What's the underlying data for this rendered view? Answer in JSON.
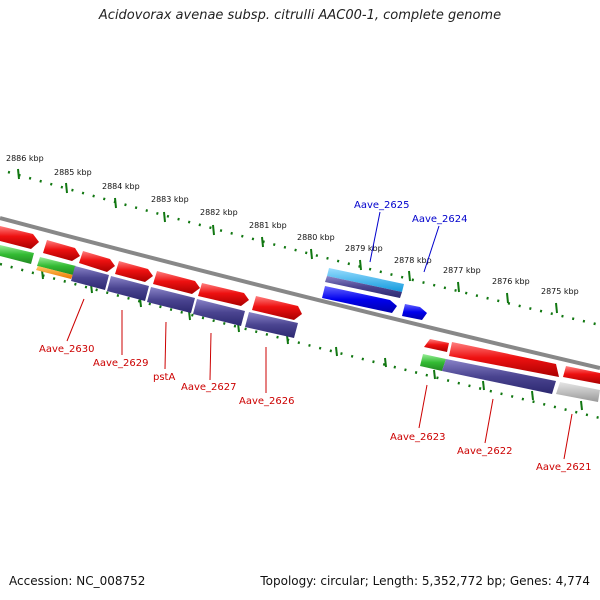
{
  "title": "Acidovorax avenae subsp. citrulli AAC00-1, complete genome",
  "accession": "Accession: NC_008752",
  "summary": "Topology: circular; Length: 5,352,772 bp; Genes: 4,774",
  "scale_labels": [
    "2886 kbp",
    "2885 kbp",
    "2884 kbp",
    "2883 kbp",
    "2882 kbp",
    "2881 kbp",
    "2880 kbp",
    "2879 kbp",
    "2878 kbp",
    "2877 kbp",
    "2876 kbp",
    "2875 kbp"
  ],
  "gene_labels_upper": [
    "Aave_2625",
    "Aave_2624"
  ],
  "gene_labels_lower": [
    "Aave_2630",
    "Aave_2629",
    "pstA",
    "Aave_2627",
    "Aave_2626",
    "Aave_2623",
    "Aave_2622",
    "Aave_2621"
  ],
  "colors": {
    "cds": "#ee1111",
    "gene_bar": "#4a4490",
    "rna_green": "#33bb33",
    "orange": "#ff8800",
    "cyan": "#22aaee",
    "blue": "#0000ee",
    "grey": "#aaaaaa",
    "scale_green": "#117711",
    "backbone": "#888888"
  }
}
